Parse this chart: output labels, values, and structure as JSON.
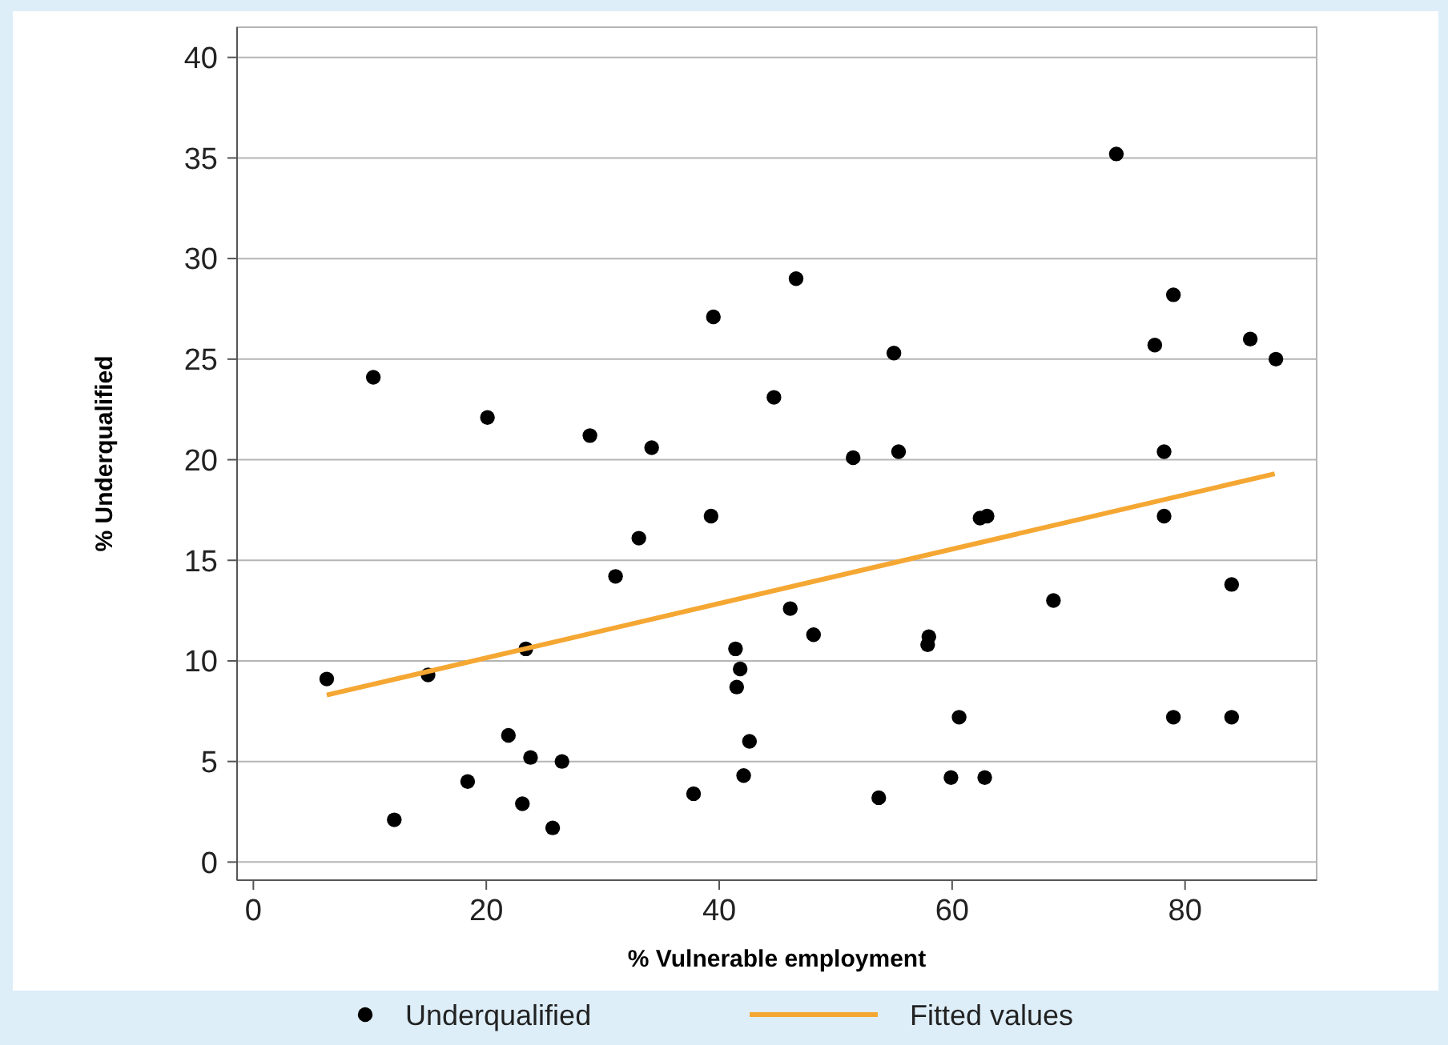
{
  "chart_data": {
    "type": "scatter",
    "xlabel": "% Vulnerable employment",
    "ylabel": "% Underqualified",
    "xlim": [
      -1.4,
      91.3
    ],
    "ylim": [
      -0.9,
      41.5
    ],
    "xticks": [
      0,
      20,
      40,
      60,
      80
    ],
    "yticks": [
      0,
      5,
      10,
      15,
      20,
      25,
      30,
      35,
      40
    ],
    "grid": "y",
    "legend": "bottom",
    "series": [
      {
        "name": "Underqualified",
        "color": "#000000",
        "marker": "circle",
        "x": [
          6.3,
          10.3,
          12.1,
          15.0,
          18.4,
          20.1,
          21.9,
          23.1,
          23.4,
          23.8,
          25.7,
          26.5,
          28.9,
          31.1,
          33.1,
          34.2,
          37.8,
          39.5,
          39.3,
          41.4,
          41.5,
          41.8,
          42.1,
          42.6,
          44.7,
          46.1,
          46.6,
          48.1,
          51.5,
          53.7,
          55.0,
          55.4,
          57.9,
          58.0,
          59.9,
          60.6,
          62.4,
          63.0,
          62.8,
          68.7,
          74.1,
          77.4,
          78.2,
          78.2,
          79.0,
          79.0,
          84.0,
          84.0,
          85.6,
          87.8
        ],
        "values": [
          9.1,
          24.1,
          2.1,
          9.3,
          4.0,
          22.1,
          6.3,
          2.9,
          10.6,
          5.2,
          1.7,
          5.0,
          21.2,
          14.2,
          16.1,
          20.6,
          3.4,
          27.1,
          17.2,
          10.6,
          8.7,
          9.6,
          4.3,
          6.0,
          23.1,
          12.6,
          29.0,
          11.3,
          20.1,
          3.2,
          25.3,
          20.4,
          10.8,
          11.2,
          4.2,
          7.2,
          17.1,
          17.2,
          4.2,
          13.0,
          35.2,
          25.7,
          20.4,
          17.2,
          28.2,
          7.2,
          7.2,
          13.8,
          26.0,
          25.0
        ]
      },
      {
        "name": "Fitted values",
        "type": "line",
        "color": "#f5a733",
        "marker": "none",
        "line_style": "solid",
        "x": [
          6.3,
          87.7
        ],
        "values": [
          8.3,
          19.3
        ]
      }
    ]
  }
}
